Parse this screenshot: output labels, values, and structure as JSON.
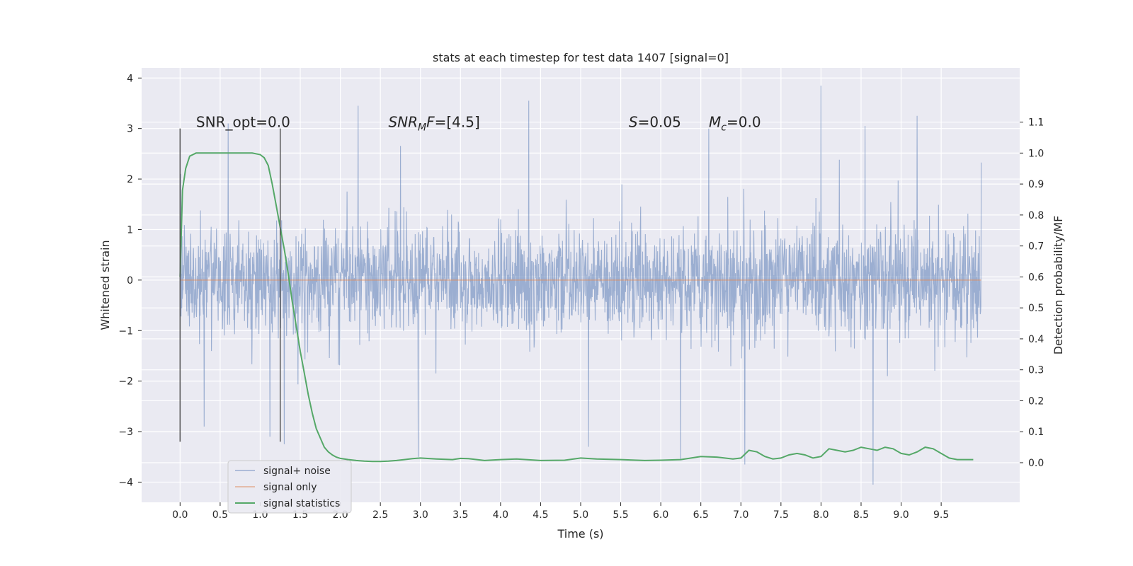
{
  "chart_data": {
    "type": "line",
    "title": "stats at each timestep for test data 1407 [signal=0]",
    "xlabel": "Time (s)",
    "ylabel": "Whitened strain",
    "y2label": "Detection probability/MF",
    "xlim": [
      -0.48,
      10.48
    ],
    "ylim": [
      -4.4,
      4.2
    ],
    "y2lim": [
      -0.128,
      1.275
    ],
    "xticks": [
      "0.0",
      "0.5",
      "1.0",
      "1.5",
      "2.0",
      "2.5",
      "3.0",
      "3.5",
      "4.0",
      "4.5",
      "5.0",
      "5.5",
      "6.0",
      "6.5",
      "7.0",
      "7.5",
      "8.0",
      "8.5",
      "9.0",
      "9.5"
    ],
    "yticks": [
      "4",
      "3",
      "2",
      "1",
      "0",
      "−1",
      "−2",
      "−3",
      "−4"
    ],
    "y2ticks": [
      "1.1",
      "1.0",
      "0.9",
      "0.8",
      "0.7",
      "0.6",
      "0.5",
      "0.4",
      "0.3",
      "0.2",
      "0.1",
      "0.0"
    ],
    "grid": true,
    "legend_position": "lower-left",
    "annotations": [
      {
        "text": "SNR_opt=0.0",
        "x": 0.2,
        "y": 3.0
      },
      {
        "text": "=[4.5]",
        "math": "SNR",
        "sub": "M",
        "math2": "F",
        "x": 2.6,
        "y": 3.0
      },
      {
        "text": "=0.05",
        "math": "S",
        "x": 5.6,
        "y": 3.0
      },
      {
        "text": "=0.0",
        "math": "M",
        "sub": "c",
        "x": 6.6,
        "y": 3.0
      }
    ],
    "vlines": [
      {
        "x": 0.0,
        "ymin": -3.2,
        "ymax": 3.0
      },
      {
        "x": 1.25,
        "ymin": -3.2,
        "ymax": 3.0
      }
    ],
    "series": [
      {
        "name": "signal+ noise",
        "color": "#4c72b0",
        "axis": "left",
        "style": "noise",
        "x_range": [
          0.0,
          10.0
        ],
        "typical_range": [
          -1.3,
          1.15
        ],
        "spikes": [
          {
            "x": 0.01,
            "y": 2.1
          },
          {
            "x": 0.6,
            "y": 3.1
          },
          {
            "x": 1.12,
            "y": -3.1
          },
          {
            "x": 1.3,
            "y": -3.25
          },
          {
            "x": 2.22,
            "y": 3.45
          },
          {
            "x": 2.97,
            "y": -3.5
          },
          {
            "x": 4.35,
            "y": 3.55
          },
          {
            "x": 5.1,
            "y": -3.3
          },
          {
            "x": 6.25,
            "y": -3.55
          },
          {
            "x": 7.05,
            "y": -3.65
          },
          {
            "x": 8.0,
            "y": 3.85
          },
          {
            "x": 8.65,
            "y": -4.05
          },
          {
            "x": 9.2,
            "y": 3.25
          },
          {
            "x": 0.3,
            "y": -2.9
          },
          {
            "x": 6.6,
            "y": 3.0
          },
          {
            "x": 8.55,
            "y": 3.05
          }
        ]
      },
      {
        "name": "signal only",
        "color": "#dd8452",
        "axis": "left",
        "x": [
          0.0,
          10.0
        ],
        "y": [
          0.0,
          0.0
        ]
      },
      {
        "name": "signal statistics",
        "color": "#55a868",
        "axis": "right",
        "x": [
          0.0,
          0.03,
          0.07,
          0.12,
          0.2,
          0.3,
          0.5,
          0.7,
          0.9,
          1.0,
          1.05,
          1.1,
          1.15,
          1.2,
          1.25,
          1.3,
          1.35,
          1.4,
          1.45,
          1.5,
          1.55,
          1.6,
          1.65,
          1.7,
          1.75,
          1.8,
          1.85,
          1.9,
          1.95,
          2.0,
          2.1,
          2.2,
          2.3,
          2.4,
          2.5,
          2.6,
          2.7,
          2.8,
          2.9,
          3.0,
          3.2,
          3.4,
          3.5,
          3.6,
          3.8,
          4.0,
          4.2,
          4.5,
          4.8,
          5.0,
          5.2,
          5.5,
          5.8,
          6.0,
          6.25,
          6.5,
          6.7,
          6.9,
          7.0,
          7.1,
          7.2,
          7.3,
          7.4,
          7.5,
          7.6,
          7.7,
          7.8,
          7.9,
          8.0,
          8.1,
          8.2,
          8.3,
          8.4,
          8.5,
          8.6,
          8.7,
          8.8,
          8.9,
          9.0,
          9.1,
          9.2,
          9.3,
          9.4,
          9.5,
          9.6,
          9.7,
          9.8,
          9.9
        ],
        "y": [
          0.6,
          0.88,
          0.95,
          0.99,
          1.0,
          1.0,
          1.0,
          1.0,
          1.0,
          0.995,
          0.985,
          0.96,
          0.9,
          0.83,
          0.76,
          0.69,
          0.61,
          0.52,
          0.44,
          0.36,
          0.29,
          0.22,
          0.16,
          0.11,
          0.08,
          0.05,
          0.035,
          0.025,
          0.018,
          0.014,
          0.01,
          0.007,
          0.005,
          0.004,
          0.004,
          0.005,
          0.007,
          0.01,
          0.013,
          0.015,
          0.012,
          0.01,
          0.014,
          0.013,
          0.007,
          0.01,
          0.012,
          0.007,
          0.008,
          0.015,
          0.012,
          0.01,
          0.007,
          0.008,
          0.01,
          0.02,
          0.018,
          0.012,
          0.015,
          0.04,
          0.035,
          0.02,
          0.012,
          0.015,
          0.025,
          0.03,
          0.025,
          0.015,
          0.02,
          0.045,
          0.04,
          0.035,
          0.04,
          0.05,
          0.045,
          0.04,
          0.05,
          0.045,
          0.03,
          0.025,
          0.035,
          0.05,
          0.045,
          0.03,
          0.015,
          0.01,
          0.01,
          0.01
        ]
      }
    ]
  }
}
